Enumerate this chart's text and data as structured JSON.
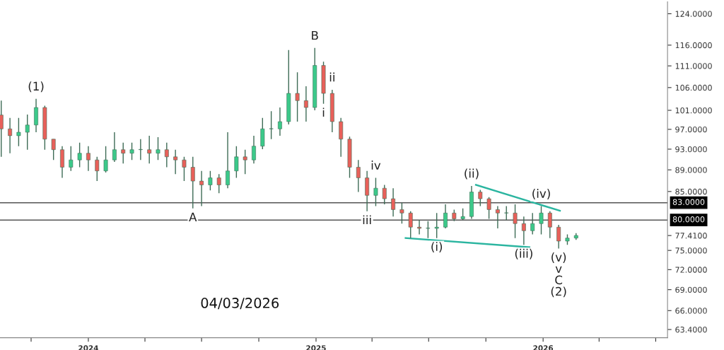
{
  "chart_data": {
    "type": "candlestick",
    "x": [
      "2023-08-14",
      "2023-08-28",
      "2023-09-11",
      "2023-09-25",
      "2023-10-09",
      "2023-10-23",
      "2023-11-06",
      "2023-11-20",
      "2023-12-04",
      "2023-12-18",
      "2024-01-01",
      "2024-01-15",
      "2024-01-29",
      "2024-02-12",
      "2024-02-26",
      "2024-03-11",
      "2024-03-25",
      "2024-04-08",
      "2024-04-22",
      "2024-05-06",
      "2024-05-20",
      "2024-06-03",
      "2024-06-17",
      "2024-07-01",
      "2024-07-15",
      "2024-07-29",
      "2024-08-12",
      "2024-08-26",
      "2024-09-09",
      "2024-09-23",
      "2024-10-07",
      "2024-10-21",
      "2024-11-04",
      "2024-11-18",
      "2024-12-02",
      "2024-12-16",
      "2024-12-30",
      "2025-01-13",
      "2025-01-27",
      "2025-02-10",
      "2025-02-24",
      "2025-03-10",
      "2025-03-24",
      "2025-04-07",
      "2025-04-21",
      "2025-05-05",
      "2025-05-19",
      "2025-06-02",
      "2025-06-16",
      "2025-06-30",
      "2025-07-14",
      "2025-07-28",
      "2025-08-11",
      "2025-08-25",
      "2025-09-08",
      "2025-09-22",
      "2025-10-06",
      "2025-10-20",
      "2025-11-03",
      "2025-11-17",
      "2025-12-01",
      "2025-12-15",
      "2025-12-29",
      "2026-01-12",
      "2026-01-26",
      "2026-02-09",
      "2026-02-23"
    ],
    "ohlc": [
      [
        100,
        103.1,
        91.5,
        97.1
      ],
      [
        97.1,
        99.4,
        92.2,
        95.7
      ],
      [
        95.7,
        99.4,
        93.6,
        96.4
      ],
      [
        96.4,
        100.1,
        92.9,
        97.9
      ],
      [
        97.9,
        103.5,
        96.4,
        101.6
      ],
      [
        101.6,
        102,
        92.9,
        95.0
      ],
      [
        95.0,
        95.0,
        90.9,
        92.9
      ],
      [
        92.9,
        93.6,
        87.5,
        89.5
      ],
      [
        89.5,
        93.6,
        88.8,
        90.9
      ],
      [
        90.9,
        94.3,
        89.5,
        92.2
      ],
      [
        92.2,
        93.6,
        88.8,
        90.9
      ],
      [
        90.9,
        91.5,
        86.9,
        88.8
      ],
      [
        88.8,
        93.6,
        88.5,
        90.9
      ],
      [
        90.9,
        96.4,
        90.5,
        92.9
      ],
      [
        92.9,
        94.3,
        90.2,
        92.2
      ],
      [
        92.2,
        94.3,
        90.9,
        92.9
      ],
      [
        92.9,
        95.0,
        90.9,
        92.9
      ],
      [
        92.9,
        95.7,
        90.2,
        92.2
      ],
      [
        92.2,
        95.4,
        90.9,
        92.9
      ],
      [
        92.9,
        94.3,
        89.5,
        91.5
      ],
      [
        91.5,
        92.9,
        88.2,
        90.9
      ],
      [
        90.9,
        91.5,
        86.9,
        89.5
      ],
      [
        89.5,
        91.5,
        82.0,
        86.9
      ],
      [
        86.9,
        88.8,
        82.4,
        86.2
      ],
      [
        86.2,
        88.8,
        85.2,
        87.5
      ],
      [
        87.5,
        88.2,
        84.7,
        86.2
      ],
      [
        86.2,
        96.4,
        85.6,
        88.8
      ],
      [
        88.8,
        93.6,
        87.5,
        91.5
      ],
      [
        91.5,
        92.9,
        88.2,
        90.9
      ],
      [
        90.9,
        95.7,
        90.2,
        93.6
      ],
      [
        93.6,
        99.4,
        93.0,
        97.1
      ],
      [
        97.1,
        100.8,
        95.0,
        97.1
      ],
      [
        97.1,
        101.6,
        95.7,
        98.6
      ],
      [
        98.6,
        114.8,
        98.0,
        104.7
      ],
      [
        104.7,
        109.5,
        98.6,
        103.1
      ],
      [
        103.1,
        106.3,
        98.6,
        101.6
      ],
      [
        101.6,
        115.3,
        101.0,
        111.1
      ],
      [
        111.1,
        112,
        102.4,
        104.7
      ],
      [
        104.7,
        105.5,
        96.4,
        98.6
      ],
      [
        98.6,
        99.4,
        91.5,
        95.0
      ],
      [
        95.0,
        95.5,
        87.5,
        89.5
      ],
      [
        89.5,
        90.9,
        84.9,
        87.5
      ],
      [
        87.5,
        88.8,
        81.5,
        84.3
      ],
      [
        84.3,
        87.5,
        82.4,
        85.6
      ],
      [
        85.6,
        86.2,
        82.7,
        83.7
      ],
      [
        83.7,
        85.6,
        80.6,
        81.8
      ],
      [
        81.8,
        83.0,
        79.4,
        81.2
      ],
      [
        81.2,
        81.5,
        77.0,
        78.8
      ],
      [
        78.8,
        80.0,
        77.6,
        78.6
      ],
      [
        78.6,
        79.8,
        77.0,
        78.6
      ],
      [
        78.6,
        81.2,
        77.0,
        78.8
      ],
      [
        78.8,
        82.7,
        78.6,
        81.2
      ],
      [
        81.2,
        81.8,
        79.8,
        80.2
      ],
      [
        80.2,
        82.0,
        80.0,
        80.6
      ],
      [
        80.6,
        86.0,
        80.2,
        84.9
      ],
      [
        84.9,
        85.3,
        82.4,
        83.7
      ],
      [
        83.7,
        84.0,
        80.2,
        81.8
      ],
      [
        81.8,
        82.4,
        78.6,
        81.2
      ],
      [
        81.2,
        82.4,
        80.0,
        81.2
      ],
      [
        81.2,
        82.7,
        77.0,
        79.4
      ],
      [
        79.4,
        80.6,
        75.9,
        78.2
      ],
      [
        78.2,
        81.2,
        77.6,
        79.4
      ],
      [
        79.4,
        82.4,
        77.6,
        81.2
      ],
      [
        81.2,
        81.5,
        77.0,
        78.8
      ],
      [
        78.8,
        79.2,
        75.3,
        76.5
      ],
      [
        76.5,
        77.6,
        75.9,
        77.0
      ],
      [
        77.0,
        77.8,
        76.7,
        77.41
      ]
    ],
    "series": [
      {
        "type": "line",
        "color": "#2bb5a0",
        "x": [
          "2025-09-15",
          "2026-01-28"
        ],
        "values": [
          86.2,
          81.6
        ]
      },
      {
        "type": "line",
        "color": "#2bb5a0",
        "x": [
          "2025-05-25",
          "2025-12-10"
        ],
        "values": [
          77.0,
          75.5
        ]
      }
    ],
    "log": true,
    "ylim": [
      62.3,
      127.2
    ],
    "yticks": [
      {
        "value": 63.4,
        "label": "63.4000"
      },
      {
        "value": 66,
        "label": "66.0000"
      },
      {
        "value": 69,
        "label": "69.0000"
      },
      {
        "value": 72,
        "label": "72.0000"
      },
      {
        "value": 75,
        "label": "75.0000"
      },
      {
        "value": 77.41,
        "label": "77.4100"
      },
      {
        "value": 85,
        "label": "85.0000"
      },
      {
        "value": 89,
        "label": "89.0000"
      },
      {
        "value": 93,
        "label": "93.0000"
      },
      {
        "value": 97,
        "label": "97.0000"
      },
      {
        "value": 101,
        "label": "101.0000"
      },
      {
        "value": 106,
        "label": "106.0000"
      },
      {
        "value": 111,
        "label": "111.0000"
      },
      {
        "value": 116,
        "label": "116.0000"
      },
      {
        "value": 124,
        "label": "124.0000"
      }
    ],
    "xlim": [
      "2023-08-12",
      "2026-07-20"
    ],
    "xticks": [
      {
        "value": "2023-10-01",
        "label": null
      },
      {
        "value": "2024-01-01",
        "label": "2024"
      },
      {
        "value": "2024-04-01",
        "label": null
      },
      {
        "value": "2024-07-01",
        "label": null
      },
      {
        "value": "2024-10-01",
        "label": null
      },
      {
        "value": "2025-01-01",
        "label": "2025"
      },
      {
        "value": "2025-04-01",
        "label": null
      },
      {
        "value": "2025-07-01",
        "label": null
      },
      {
        "value": "2025-10-01",
        "label": null
      },
      {
        "value": "2026-01-01",
        "label": "2026"
      },
      {
        "value": "2026-04-01",
        "label": null
      },
      {
        "value": "2026-07-01",
        "label": null
      }
    ],
    "ref_lines": [
      {
        "axis": "y",
        "value": 83,
        "label": "83.0000",
        "color": "#555555"
      },
      {
        "axis": "y",
        "value": 80,
        "label": "80.0000",
        "color": "#555555"
      }
    ],
    "grid": false,
    "annotations": [
      {
        "text": "(1)",
        "x": "2023-10-09",
        "y": 103.5
      },
      {
        "text": "A",
        "x": "2024-06-17",
        "y": 82.0
      },
      {
        "text": "B",
        "x": "2024-12-30",
        "y": 115.3
      },
      {
        "text": "ii",
        "x": "2025-01-27",
        "y": 105.5
      },
      {
        "text": "i",
        "x": "2025-01-13",
        "y": 102.4
      },
      {
        "text": "iv",
        "x": "2025-04-07",
        "y": 87.5
      },
      {
        "text": "iii",
        "x": "2025-03-24",
        "y": 81.5
      },
      {
        "text": "(i)",
        "x": "2025-07-14",
        "y": 77.0
      },
      {
        "text": "(ii)",
        "x": "2025-09-08",
        "y": 86.0
      },
      {
        "text": "(iii)",
        "x": "2025-12-01",
        "y": 75.9
      },
      {
        "text": "(iv)",
        "x": "2025-12-29",
        "y": 82.4
      },
      {
        "text": "(v)\nv\nC\n(2)",
        "x": "2026-01-26",
        "y": 75.3
      },
      "04/03/2026"
    ]
  }
}
